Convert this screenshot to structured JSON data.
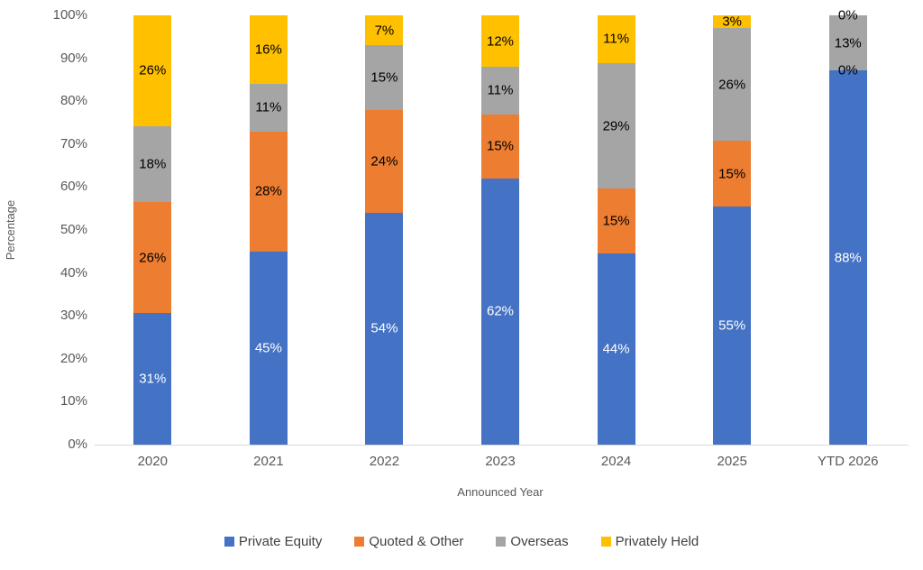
{
  "chart_data": {
    "type": "bar",
    "stacked": true,
    "percent_stacked": true,
    "title": "",
    "xlabel": "Announced Year",
    "ylabel": "Percentage",
    "value_suffix": "%",
    "ylim": [
      0,
      100
    ],
    "grid": false,
    "legend_position": "bottom",
    "y_ticks": [
      "0%",
      "10%",
      "20%",
      "30%",
      "40%",
      "50%",
      "60%",
      "70%",
      "80%",
      "90%",
      "100%"
    ],
    "categories": [
      "2020",
      "2021",
      "2022",
      "2023",
      "2024",
      "2025",
      "YTD 2026"
    ],
    "series": [
      {
        "name": "Private Equity",
        "color": "#4472C4",
        "label_color": "#FFFFFF",
        "values": [
          31,
          45,
          54,
          62,
          44,
          55,
          88
        ]
      },
      {
        "name": "Quoted & Other",
        "color": "#ED7D31",
        "label_color": "#000000",
        "values": [
          26,
          28,
          24,
          15,
          15,
          15,
          0
        ]
      },
      {
        "name": "Overseas",
        "color": "#A5A5A5",
        "label_color": "#000000",
        "values": [
          18,
          11,
          15,
          11,
          29,
          26,
          13
        ]
      },
      {
        "name": "Privately Held",
        "color": "#FFC000",
        "label_color": "#000000",
        "values": [
          26,
          16,
          7,
          12,
          11,
          3,
          0
        ]
      }
    ],
    "axis_colors": {
      "tick_label": "#595959",
      "axis_line": "#D9D9D9",
      "axis_title": "#595959",
      "legend_text": "#404040"
    }
  }
}
